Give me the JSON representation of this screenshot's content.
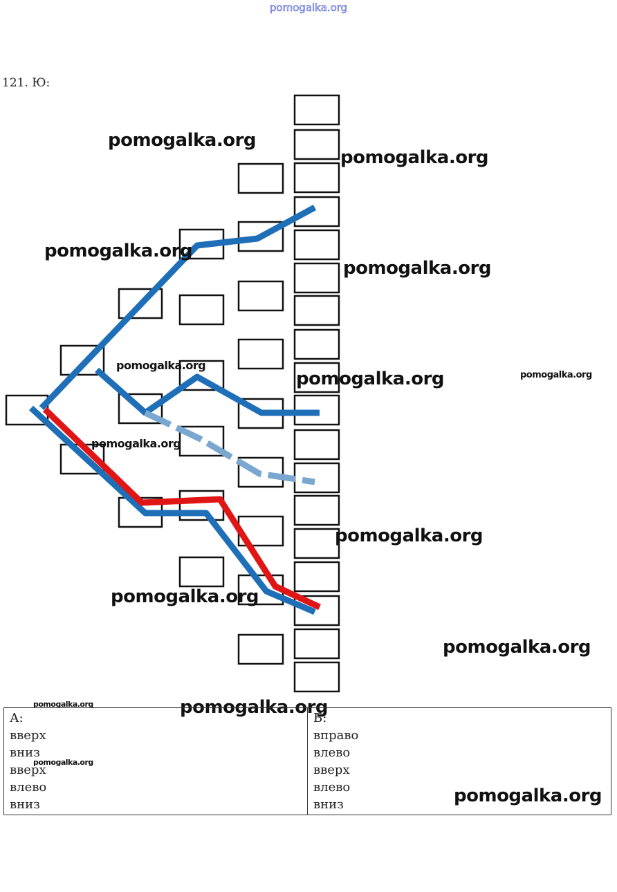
{
  "header": {
    "site": "pomogalka.org"
  },
  "problem": {
    "label": "121. Ю:"
  },
  "watermarks": [
    "pomogalka.org",
    "pomogalka.org",
    "pomogalka.org",
    "pomogalka.org",
    "pomogalka.org",
    "pomogalka.org",
    "pomogalka.org",
    "pomogalka.org",
    "pomogalka.org",
    "pomogalka.org",
    "pomogalka.org",
    "pomogalka.org",
    "pomogalka.org",
    "pomogalka.org",
    "pomogalka.org"
  ],
  "table": {
    "columns": [
      {
        "title": "А:",
        "items": [
          "вверх",
          "вниз",
          "вверх",
          "влево",
          "вниз"
        ]
      },
      {
        "title": "Б:",
        "items": [
          "вправо",
          "влево",
          "вверх",
          "влево",
          "вниз"
        ]
      }
    ]
  }
}
